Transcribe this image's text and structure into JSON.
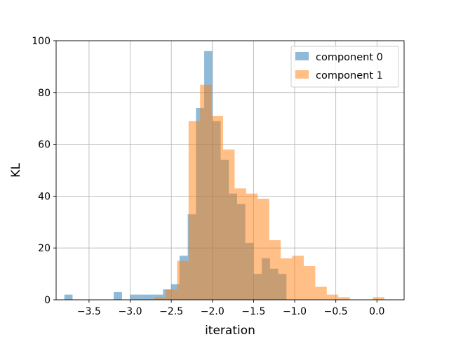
{
  "chart_data": {
    "type": "bar",
    "subtype": "overlaid-histogram",
    "title": "",
    "xlabel": "iteration",
    "ylabel": "KL",
    "xlim": [
      -3.9,
      0.33
    ],
    "ylim": [
      0,
      100
    ],
    "xticks": [
      {
        "value": -3.5,
        "label": "−3.5"
      },
      {
        "value": -3.0,
        "label": "−3.0"
      },
      {
        "value": -2.5,
        "label": "−2.5"
      },
      {
        "value": -2.0,
        "label": "−2.0"
      },
      {
        "value": -1.5,
        "label": "−1.5"
      },
      {
        "value": -1.0,
        "label": "−1.0"
      },
      {
        "value": -0.5,
        "label": "−0.5"
      },
      {
        "value": 0.0,
        "label": "0.0"
      }
    ],
    "yticks": [
      {
        "value": 0,
        "label": "0"
      },
      {
        "value": 20,
        "label": "20"
      },
      {
        "value": 40,
        "label": "40"
      },
      {
        "value": 60,
        "label": "60"
      },
      {
        "value": 80,
        "label": "80"
      },
      {
        "value": 100,
        "label": "100"
      }
    ],
    "grid": true,
    "legend_position": "top-right",
    "series": [
      {
        "name": "component 0",
        "color": "#1f77b4",
        "opacity": 0.5,
        "bins": [
          {
            "x0": -3.8,
            "x1": -3.7,
            "value": 2
          },
          {
            "x0": -3.7,
            "x1": -3.6,
            "value": 0
          },
          {
            "x0": -3.6,
            "x1": -3.5,
            "value": 0
          },
          {
            "x0": -3.5,
            "x1": -3.4,
            "value": 0
          },
          {
            "x0": -3.4,
            "x1": -3.3,
            "value": 0
          },
          {
            "x0": -3.3,
            "x1": -3.2,
            "value": 0
          },
          {
            "x0": -3.2,
            "x1": -3.1,
            "value": 3
          },
          {
            "x0": -3.1,
            "x1": -3.0,
            "value": 0
          },
          {
            "x0": -3.0,
            "x1": -2.9,
            "value": 2
          },
          {
            "x0": -2.9,
            "x1": -2.8,
            "value": 2
          },
          {
            "x0": -2.8,
            "x1": -2.7,
            "value": 2
          },
          {
            "x0": -2.7,
            "x1": -2.6,
            "value": 2
          },
          {
            "x0": -2.6,
            "x1": -2.5,
            "value": 4
          },
          {
            "x0": -2.5,
            "x1": -2.4,
            "value": 6
          },
          {
            "x0": -2.4,
            "x1": -2.3,
            "value": 17
          },
          {
            "x0": -2.3,
            "x1": -2.2,
            "value": 33
          },
          {
            "x0": -2.2,
            "x1": -2.1,
            "value": 74
          },
          {
            "x0": -2.1,
            "x1": -2.0,
            "value": 96
          },
          {
            "x0": -2.0,
            "x1": -1.9,
            "value": 69
          },
          {
            "x0": -1.9,
            "x1": -1.8,
            "value": 54
          },
          {
            "x0": -1.8,
            "x1": -1.7,
            "value": 41
          },
          {
            "x0": -1.7,
            "x1": -1.6,
            "value": 37
          },
          {
            "x0": -1.6,
            "x1": -1.5,
            "value": 22
          },
          {
            "x0": -1.5,
            "x1": -1.4,
            "value": 10
          },
          {
            "x0": -1.4,
            "x1": -1.3,
            "value": 16
          },
          {
            "x0": -1.3,
            "x1": -1.2,
            "value": 12
          },
          {
            "x0": -1.2,
            "x1": -1.1,
            "value": 10
          }
        ]
      },
      {
        "name": "component 1",
        "color": "#ff7f0e",
        "opacity": 0.5,
        "bins": [
          {
            "x0": -2.85,
            "x1": -2.71,
            "value": 0
          },
          {
            "x0": -2.71,
            "x1": -2.57,
            "value": 1
          },
          {
            "x0": -2.57,
            "x1": -2.43,
            "value": 4
          },
          {
            "x0": -2.43,
            "x1": -2.29,
            "value": 15
          },
          {
            "x0": -2.29,
            "x1": -2.15,
            "value": 69
          },
          {
            "x0": -2.15,
            "x1": -2.01,
            "value": 83
          },
          {
            "x0": -2.01,
            "x1": -1.87,
            "value": 71
          },
          {
            "x0": -1.87,
            "x1": -1.73,
            "value": 58
          },
          {
            "x0": -1.73,
            "x1": -1.59,
            "value": 43
          },
          {
            "x0": -1.59,
            "x1": -1.45,
            "value": 41
          },
          {
            "x0": -1.45,
            "x1": -1.31,
            "value": 39
          },
          {
            "x0": -1.31,
            "x1": -1.17,
            "value": 23
          },
          {
            "x0": -1.17,
            "x1": -1.03,
            "value": 16
          },
          {
            "x0": -1.03,
            "x1": -0.89,
            "value": 17
          },
          {
            "x0": -0.89,
            "x1": -0.75,
            "value": 13
          },
          {
            "x0": -0.75,
            "x1": -0.61,
            "value": 5
          },
          {
            "x0": -0.61,
            "x1": -0.47,
            "value": 2
          },
          {
            "x0": -0.47,
            "x1": -0.33,
            "value": 1
          },
          {
            "x0": -0.33,
            "x1": -0.19,
            "value": 0
          },
          {
            "x0": -0.19,
            "x1": -0.05,
            "value": 0
          },
          {
            "x0": -0.05,
            "x1": 0.09,
            "value": 1
          }
        ]
      }
    ]
  }
}
